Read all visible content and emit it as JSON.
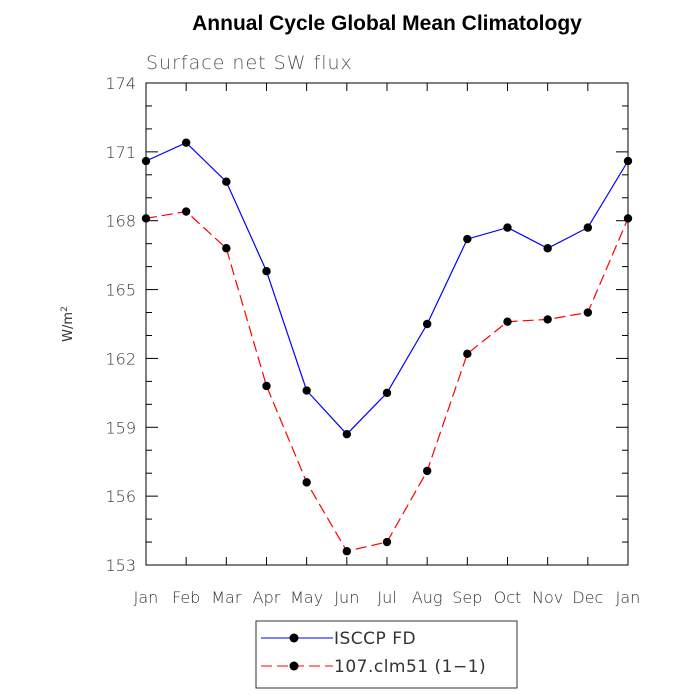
{
  "chart_data": {
    "type": "line",
    "title": "Annual Cycle Global Mean Climatology",
    "subtitle": "Surface net SW flux",
    "ylabel": "W/m",
    "ylabel_sup": "2",
    "categories": [
      "Jan",
      "Feb",
      "Mar",
      "Apr",
      "May",
      "Jun",
      "Jul",
      "Aug",
      "Sep",
      "Oct",
      "Nov",
      "Dec",
      "Jan"
    ],
    "ylim": [
      153,
      174
    ],
    "yticks": [
      "153",
      "156",
      "159",
      "162",
      "165",
      "168",
      "171",
      "174"
    ],
    "grid": false,
    "legend_position": "bottom-center",
    "series": [
      {
        "name": "ISCCP FD",
        "color": "#0000ff",
        "dash": "solid",
        "values": [
          170.6,
          171.4,
          169.7,
          165.8,
          160.6,
          158.7,
          160.5,
          163.5,
          167.2,
          167.7,
          166.8,
          167.7,
          170.6
        ]
      },
      {
        "name": "107.clm51 (1−1)",
        "color": "#ff0000",
        "dash": "dashed",
        "values": [
          168.1,
          168.4,
          166.8,
          160.8,
          156.6,
          153.6,
          154.0,
          157.1,
          162.2,
          163.6,
          163.7,
          164.0,
          168.1
        ]
      }
    ]
  }
}
